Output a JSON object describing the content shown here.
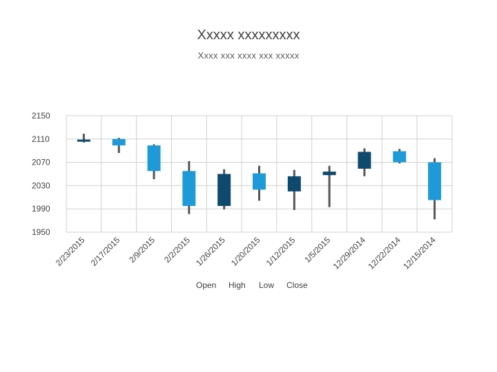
{
  "title": "Xxxxx xxxxxxxxx",
  "subtitle": "Xxxx xxx xxxx xxx xxxxx",
  "colors": {
    "up": "#1f9ad8",
    "down": "#0d4a6e",
    "wick": "#555555",
    "grid": "#d0d0d0"
  },
  "chart_data": {
    "type": "candlestick",
    "title": "Xxxxx xxxxxxxxx",
    "subtitle": "Xxxx xxx xxxx xxx xxxxx",
    "ylim": [
      1950,
      2150
    ],
    "yticks": [
      1950,
      1990,
      2030,
      2070,
      2110,
      2150
    ],
    "grid": true,
    "legend": [
      "Open",
      "High",
      "Low",
      "Close"
    ],
    "legend_position": "bottom",
    "categories": [
      "2/23/2015",
      "2/17/2015",
      "2/9/2015",
      "2/2/2015",
      "1/26/2015",
      "1/20/2015",
      "1/12/2015",
      "1/5/2015",
      "12/29/2014",
      "12/22/2014",
      "12/15/2014"
    ],
    "series": [
      {
        "date": "2/23/2015",
        "open": 2109,
        "high": 2119,
        "low": 2104,
        "close": 2107
      },
      {
        "date": "2/17/2015",
        "open": 2099,
        "high": 2112,
        "low": 2086,
        "close": 2110
      },
      {
        "date": "2/9/2015",
        "open": 2055,
        "high": 2101,
        "low": 2041,
        "close": 2099
      },
      {
        "date": "2/2/2015",
        "open": 1995,
        "high": 2072,
        "low": 1981,
        "close": 2055
      },
      {
        "date": "1/26/2015",
        "open": 2050,
        "high": 2058,
        "low": 1989,
        "close": 1995
      },
      {
        "date": "1/20/2015",
        "open": 2023,
        "high": 2064,
        "low": 2004,
        "close": 2051
      },
      {
        "date": "1/12/2015",
        "open": 2046,
        "high": 2057,
        "low": 1988,
        "close": 2020
      },
      {
        "date": "1/5/2015",
        "open": 2054,
        "high": 2064,
        "low": 1993,
        "close": 2048
      },
      {
        "date": "12/29/2014",
        "open": 2088,
        "high": 2094,
        "low": 2046,
        "close": 2059
      },
      {
        "date": "12/22/2014",
        "open": 2070,
        "high": 2093,
        "low": 2068,
        "close": 2089
      },
      {
        "date": "12/15/2014",
        "open": 2005,
        "high": 2077,
        "low": 1972,
        "close": 2070
      }
    ]
  }
}
